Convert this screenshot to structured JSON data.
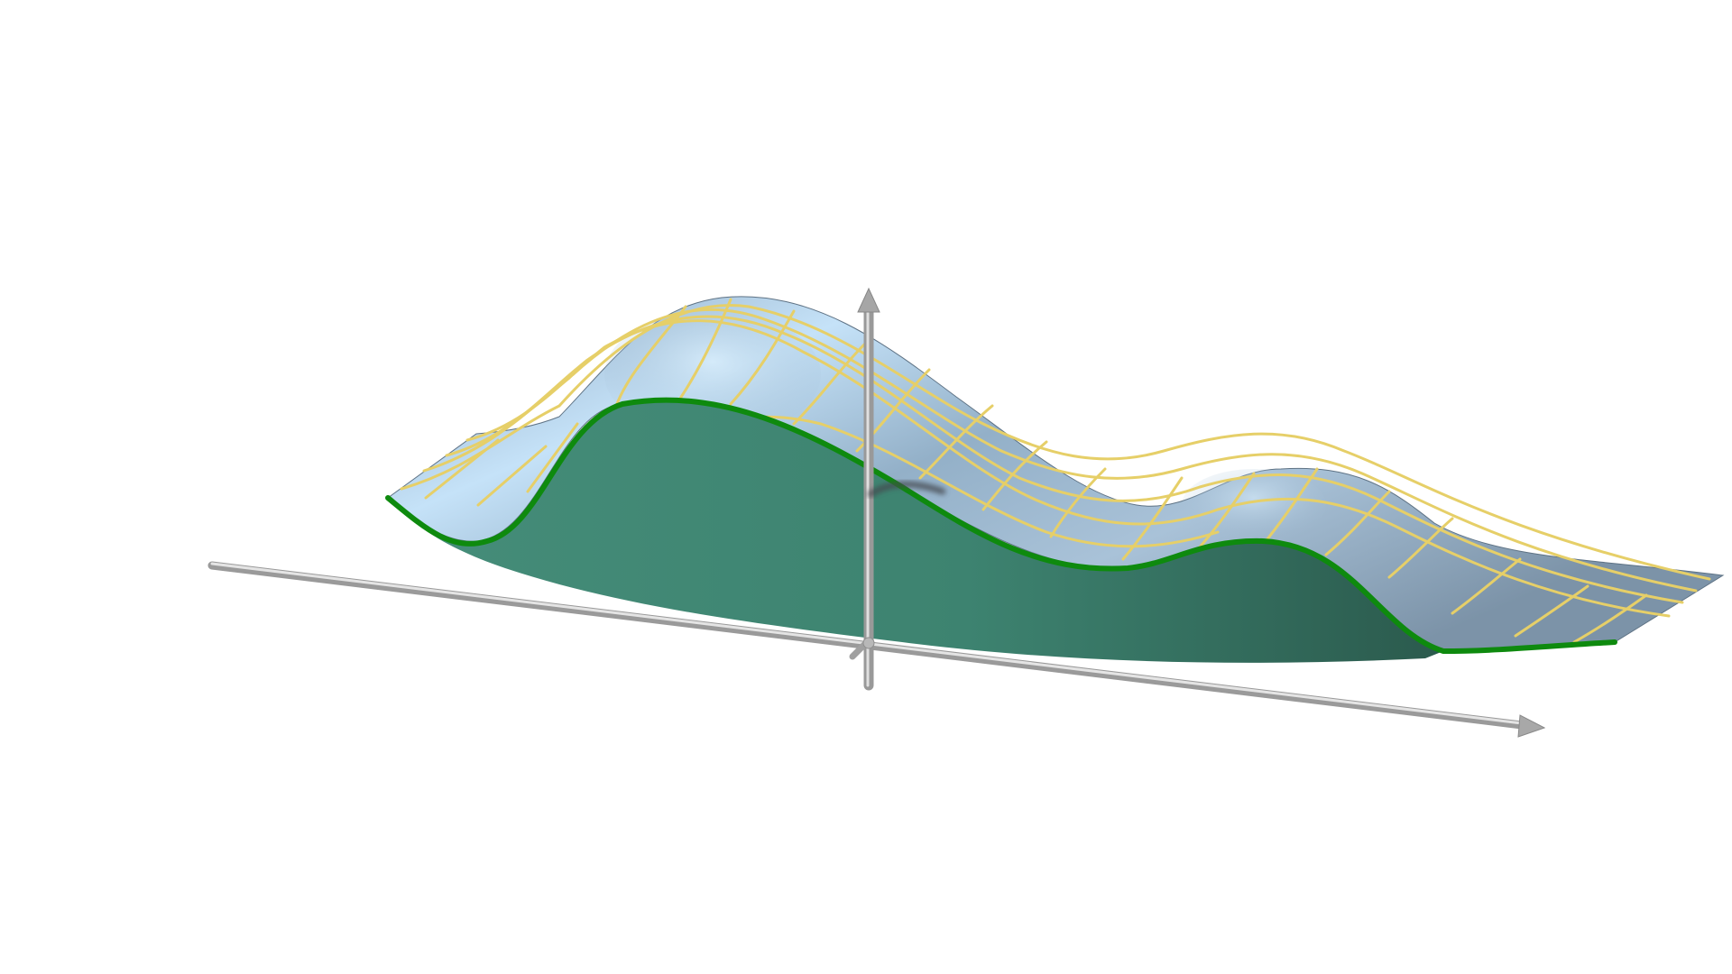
{
  "scene": {
    "type": "3d-surface-plot",
    "background": "#ffffff",
    "colors": {
      "surface_light": "#c8e2f6",
      "surface_mid": "#93b0c8",
      "surface_dark": "#6d8397",
      "mesh_lines": "#e6cf68",
      "region_fill": "#3f8571",
      "region_fill_dark": "#2d5d4f",
      "boundary_curve": "#129112",
      "axes": "#a6a6a6"
    },
    "axes": {
      "labels": []
    },
    "elements": [
      "surface",
      "wireframe-mesh",
      "cross-section-region",
      "boundary-curve",
      "x-axis",
      "y-axis",
      "z-axis"
    ]
  }
}
